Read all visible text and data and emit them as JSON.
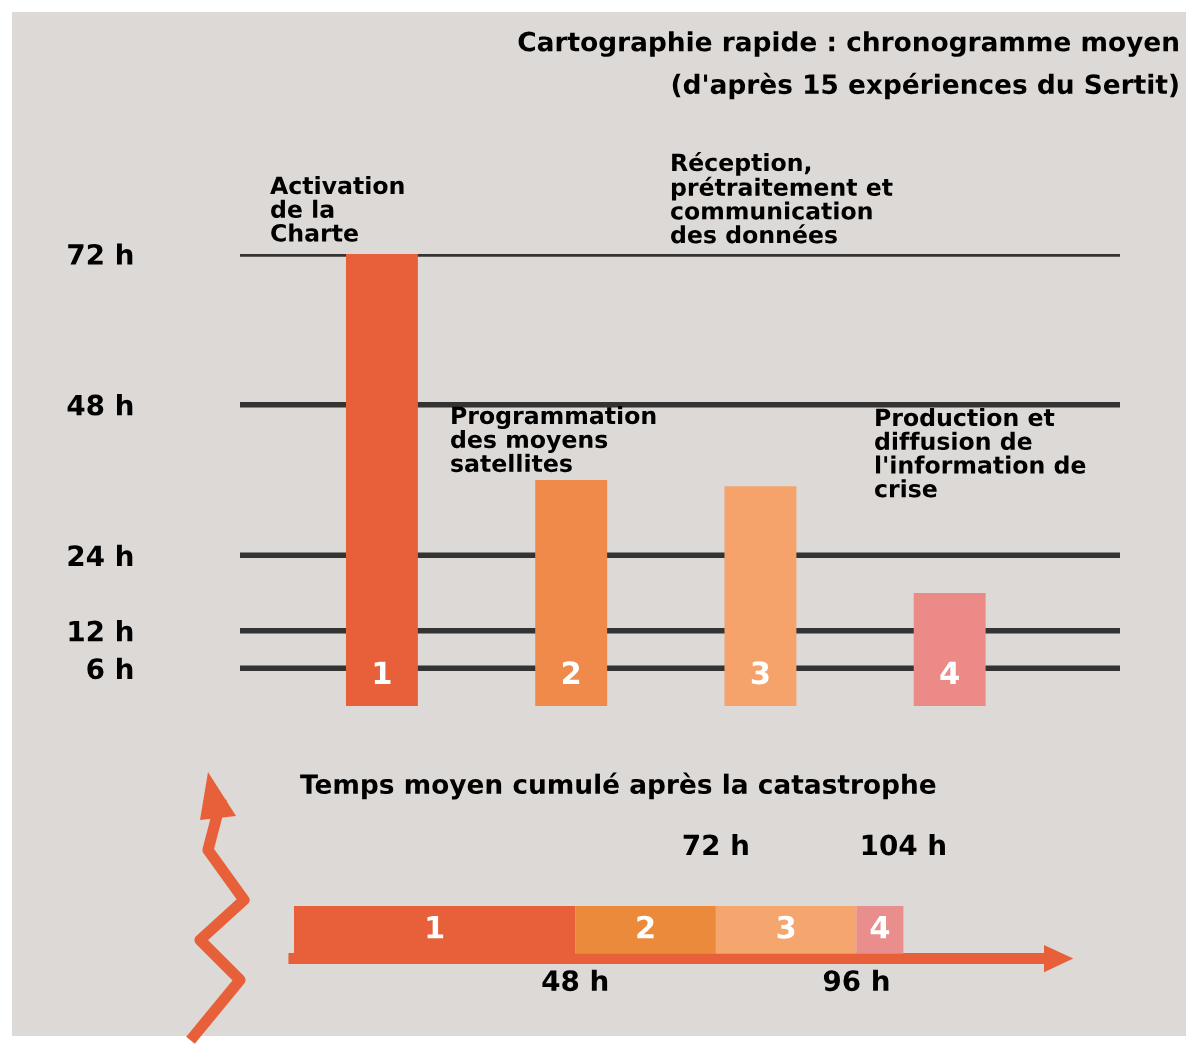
{
  "chart_data": [
    {
      "type": "bar",
      "title": "Cartographie rapide : chronogramme moyen",
      "subtitle": "(d'après 15 expériences du Sertit)",
      "categories": [
        "1",
        "2",
        "3",
        "4"
      ],
      "values": [
        72,
        36,
        35,
        18
      ],
      "colors": [
        "#e8603a",
        "#f08a4a",
        "#f5a36a",
        "#ec8a88"
      ],
      "ylim": [
        0,
        72
      ],
      "yticks": [
        {
          "value": 6,
          "label": "6 h"
        },
        {
          "value": 12,
          "label": "12 h"
        },
        {
          "value": 24,
          "label": "24 h"
        },
        {
          "value": 48,
          "label": "48 h"
        },
        {
          "value": 72,
          "label": "72 h"
        }
      ],
      "grid": "y",
      "annotations": [
        "Activation\nde la\nCharte",
        "Programmation\ndes moyens\nsatellites",
        "Réception,\nprétraitement et\ncommunication\ndes données",
        "Production et\ndiffusion de\nl'information de\ncrise"
      ]
    },
    {
      "type": "bar",
      "orientation": "horizontal",
      "stacked": true,
      "title": "Temps moyen cumulé après la catastrophe",
      "categories": [
        null
      ],
      "series": [
        {
          "name": "1",
          "color": "#e8603a",
          "values": [
            48
          ]
        },
        {
          "name": "2",
          "color": "#ec8a3c",
          "values": [
            24
          ]
        },
        {
          "name": "3",
          "color": "#f5a56e",
          "values": [
            24
          ]
        },
        {
          "name": "4",
          "color": "#e98d8d",
          "values": [
            8
          ]
        }
      ],
      "xlim": [
        0,
        128
      ],
      "xticks": [
        {
          "value": 48,
          "label": "48 h"
        },
        {
          "value": 96,
          "label": "96 h"
        }
      ],
      "x2lim": [
        0,
        128
      ],
      "x2ticks": [
        {
          "value": 72,
          "label": "72 h"
        },
        {
          "value": 104,
          "label": "104 h"
        }
      ]
    }
  ]
}
